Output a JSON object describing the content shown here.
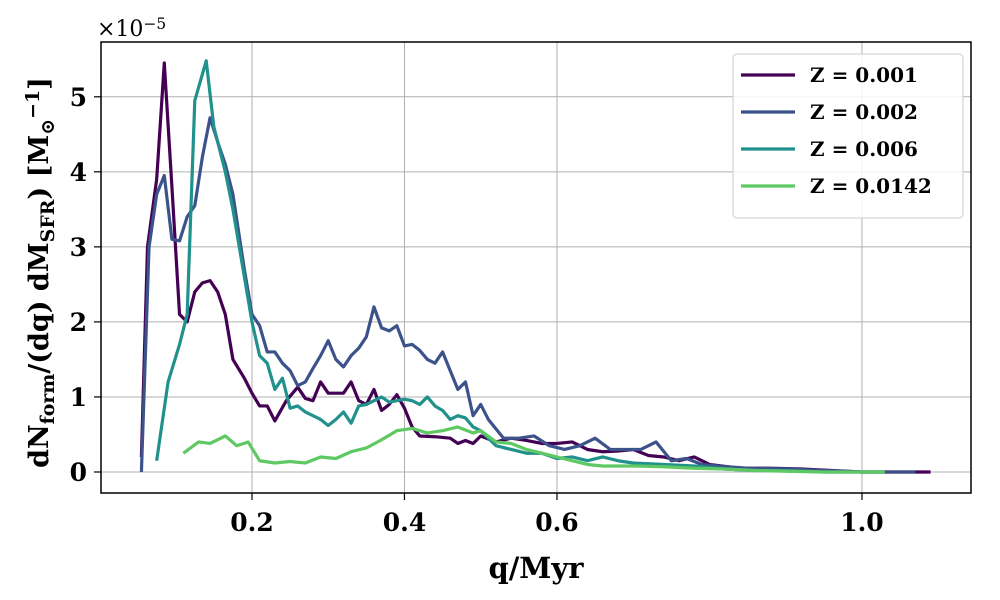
{
  "chart_data": {
    "type": "line",
    "xlabel": "q/Myr",
    "ylabel": [
      [
        "dN",
        ""
      ],
      [
        "form",
        "sub"
      ],
      [
        "/(dq) dM",
        ""
      ],
      [
        "SFR",
        "sub"
      ],
      [
        ")  [M",
        ""
      ],
      [
        "⊙",
        "sub"
      ],
      [
        "−1",
        "sup"
      ],
      [
        "]",
        ""
      ]
    ],
    "y_offset_label": [
      [
        "×10",
        ""
      ],
      [
        "−5",
        "sup"
      ]
    ],
    "xlim": [
      0.002,
      1.143
    ],
    "ylim": [
      -0.28,
      5.73
    ],
    "xticks": [
      0.2,
      0.4,
      0.6,
      {
        "value": 1,
        "label": "1.0"
      }
    ],
    "yticks": [
      0,
      1,
      2,
      3,
      4,
      5
    ],
    "grid": true,
    "legend": "upper right",
    "series": [
      {
        "name": "Z = 0.001",
        "color": "#440154",
        "x": [
          0.055,
          0.063,
          0.075,
          0.085,
          0.095,
          0.105,
          0.115,
          0.125,
          0.135,
          0.145,
          0.155,
          0.165,
          0.175,
          0.19,
          0.2,
          0.21,
          0.22,
          0.23,
          0.245,
          0.26,
          0.27,
          0.28,
          0.29,
          0.3,
          0.31,
          0.32,
          0.33,
          0.34,
          0.35,
          0.36,
          0.37,
          0.38,
          0.39,
          0.4,
          0.41,
          0.42,
          0.44,
          0.46,
          0.47,
          0.48,
          0.49,
          0.5,
          0.52,
          0.54,
          0.56,
          0.58,
          0.6,
          0.62,
          0.64,
          0.66,
          0.68,
          0.7,
          0.72,
          0.74,
          0.76,
          0.78,
          0.8,
          0.84,
          0.88,
          0.92,
          0.96,
          1.0,
          1.05,
          1.09
        ],
        "values": [
          0.2,
          3.0,
          3.9,
          5.45,
          3.8,
          2.1,
          2.0,
          2.4,
          2.52,
          2.55,
          2.4,
          2.1,
          1.5,
          1.25,
          1.05,
          0.88,
          0.88,
          0.68,
          0.95,
          1.13,
          0.98,
          0.95,
          1.2,
          1.05,
          1.05,
          1.05,
          1.2,
          0.95,
          0.9,
          1.1,
          0.82,
          0.9,
          1.03,
          0.85,
          0.6,
          0.48,
          0.47,
          0.45,
          0.38,
          0.42,
          0.38,
          0.48,
          0.4,
          0.45,
          0.42,
          0.38,
          0.38,
          0.4,
          0.3,
          0.27,
          0.28,
          0.3,
          0.22,
          0.2,
          0.15,
          0.2,
          0.1,
          0.05,
          0.05,
          0.04,
          0.02,
          0.0,
          0.0,
          0.0
        ]
      },
      {
        "name": "Z = 0.002",
        "color": "#3b528b",
        "x": [
          0.055,
          0.065,
          0.075,
          0.085,
          0.095,
          0.105,
          0.115,
          0.125,
          0.135,
          0.145,
          0.155,
          0.165,
          0.175,
          0.19,
          0.2,
          0.21,
          0.22,
          0.23,
          0.24,
          0.25,
          0.26,
          0.27,
          0.28,
          0.29,
          0.3,
          0.31,
          0.32,
          0.33,
          0.34,
          0.35,
          0.36,
          0.37,
          0.38,
          0.39,
          0.4,
          0.41,
          0.42,
          0.43,
          0.44,
          0.45,
          0.46,
          0.47,
          0.48,
          0.49,
          0.5,
          0.51,
          0.53,
          0.55,
          0.57,
          0.59,
          0.61,
          0.63,
          0.65,
          0.67,
          0.69,
          0.71,
          0.73,
          0.75,
          0.77,
          0.79,
          0.81,
          0.85,
          0.9,
          0.95,
          1.0,
          1.07
        ],
        "values": [
          0.0,
          3.0,
          3.7,
          3.95,
          3.1,
          3.08,
          3.4,
          3.55,
          4.2,
          4.72,
          4.4,
          4.1,
          3.7,
          2.7,
          2.1,
          1.95,
          1.6,
          1.6,
          1.45,
          1.35,
          1.15,
          1.2,
          1.38,
          1.55,
          1.75,
          1.5,
          1.4,
          1.55,
          1.65,
          1.8,
          2.2,
          1.92,
          1.88,
          1.95,
          1.68,
          1.7,
          1.62,
          1.5,
          1.45,
          1.6,
          1.35,
          1.1,
          1.2,
          0.75,
          0.9,
          0.7,
          0.45,
          0.45,
          0.48,
          0.35,
          0.3,
          0.35,
          0.45,
          0.3,
          0.3,
          0.3,
          0.4,
          0.15,
          0.18,
          0.1,
          0.08,
          0.05,
          0.04,
          0.02,
          0.0,
          0.0
        ]
      },
      {
        "name": "Z = 0.006",
        "color": "#21918c",
        "x": [
          0.075,
          0.09,
          0.105,
          0.115,
          0.125,
          0.14,
          0.15,
          0.165,
          0.175,
          0.19,
          0.2,
          0.21,
          0.22,
          0.23,
          0.24,
          0.25,
          0.26,
          0.27,
          0.28,
          0.29,
          0.3,
          0.31,
          0.32,
          0.33,
          0.34,
          0.35,
          0.36,
          0.37,
          0.38,
          0.39,
          0.4,
          0.41,
          0.42,
          0.43,
          0.44,
          0.45,
          0.46,
          0.47,
          0.48,
          0.49,
          0.5,
          0.52,
          0.54,
          0.56,
          0.58,
          0.6,
          0.62,
          0.64,
          0.66,
          0.68,
          0.7,
          0.74,
          0.78,
          0.82,
          0.86,
          0.9,
          0.95,
          1.03
        ],
        "values": [
          0.15,
          1.2,
          1.7,
          2.1,
          4.95,
          5.48,
          4.6,
          4.0,
          3.5,
          2.6,
          2.0,
          1.55,
          1.45,
          1.1,
          1.25,
          0.85,
          0.88,
          0.8,
          0.75,
          0.7,
          0.62,
          0.7,
          0.8,
          0.65,
          0.88,
          0.9,
          0.95,
          1.0,
          0.93,
          0.95,
          0.97,
          0.95,
          0.9,
          1.0,
          0.88,
          0.82,
          0.7,
          0.75,
          0.72,
          0.6,
          0.55,
          0.35,
          0.3,
          0.25,
          0.25,
          0.18,
          0.2,
          0.15,
          0.2,
          0.15,
          0.12,
          0.1,
          0.08,
          0.04,
          0.02,
          0.02,
          0.0,
          0.0
        ]
      },
      {
        "name": "Z = 0.0142",
        "color": "#5ec962",
        "x": [
          0.11,
          0.13,
          0.145,
          0.165,
          0.18,
          0.195,
          0.21,
          0.23,
          0.25,
          0.27,
          0.29,
          0.31,
          0.33,
          0.35,
          0.37,
          0.39,
          0.41,
          0.43,
          0.45,
          0.47,
          0.49,
          0.5,
          0.52,
          0.54,
          0.56,
          0.58,
          0.6,
          0.62,
          0.64,
          0.66,
          0.7,
          0.74,
          0.78,
          0.82,
          0.86,
          0.9,
          0.95,
          1.03
        ],
        "values": [
          0.25,
          0.4,
          0.38,
          0.48,
          0.35,
          0.4,
          0.15,
          0.12,
          0.14,
          0.12,
          0.2,
          0.18,
          0.27,
          0.32,
          0.43,
          0.55,
          0.58,
          0.52,
          0.55,
          0.6,
          0.52,
          0.55,
          0.4,
          0.38,
          0.3,
          0.25,
          0.2,
          0.15,
          0.1,
          0.08,
          0.08,
          0.07,
          0.05,
          0.04,
          0.02,
          0.01,
          0.0,
          0.0
        ]
      }
    ]
  }
}
